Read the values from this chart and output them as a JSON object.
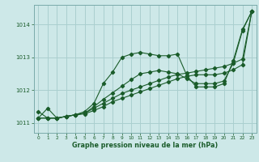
{
  "background_color": "#cde8e8",
  "grid_color": "#aacfcf",
  "line_color": "#1a5c2a",
  "xlabel": "Graphe pression niveau de la mer (hPa)",
  "xlim": [
    -0.5,
    23.5
  ],
  "ylim": [
    1010.7,
    1014.6
  ],
  "yticks": [
    1011,
    1012,
    1013,
    1014
  ],
  "xticks": [
    0,
    1,
    2,
    3,
    4,
    5,
    6,
    7,
    8,
    9,
    10,
    11,
    12,
    13,
    14,
    15,
    16,
    17,
    18,
    19,
    20,
    21,
    22,
    23
  ],
  "series": [
    [
      1011.15,
      1011.45,
      1011.15,
      1011.2,
      1011.25,
      1011.35,
      1011.6,
      1012.2,
      1012.55,
      1013.0,
      1013.1,
      1013.15,
      1013.1,
      1013.05,
      1013.05,
      1013.1,
      1012.45,
      1012.1,
      1012.1,
      1012.1,
      1012.2,
      1012.9,
      1013.85,
      1014.4
    ],
    [
      1011.15,
      1011.15,
      1011.15,
      1011.2,
      1011.25,
      1011.3,
      1011.45,
      1011.6,
      1011.75,
      1011.9,
      1012.0,
      1012.1,
      1012.2,
      1012.3,
      1012.4,
      1012.48,
      1012.52,
      1012.57,
      1012.62,
      1012.67,
      1012.72,
      1012.82,
      1012.95,
      1014.4
    ],
    [
      1011.15,
      1011.15,
      1011.15,
      1011.2,
      1011.25,
      1011.28,
      1011.38,
      1011.5,
      1011.65,
      1011.75,
      1011.85,
      1011.95,
      1012.05,
      1012.15,
      1012.25,
      1012.35,
      1012.42,
      1012.47,
      1012.47,
      1012.47,
      1012.52,
      1012.62,
      1012.78,
      1014.4
    ],
    [
      1011.35,
      1011.15,
      1011.15,
      1011.2,
      1011.25,
      1011.3,
      1011.5,
      1011.72,
      1011.92,
      1012.12,
      1012.32,
      1012.5,
      1012.55,
      1012.6,
      1012.55,
      1012.5,
      1012.35,
      1012.2,
      1012.2,
      1012.2,
      1012.28,
      1012.82,
      1013.82,
      1014.4
    ]
  ]
}
